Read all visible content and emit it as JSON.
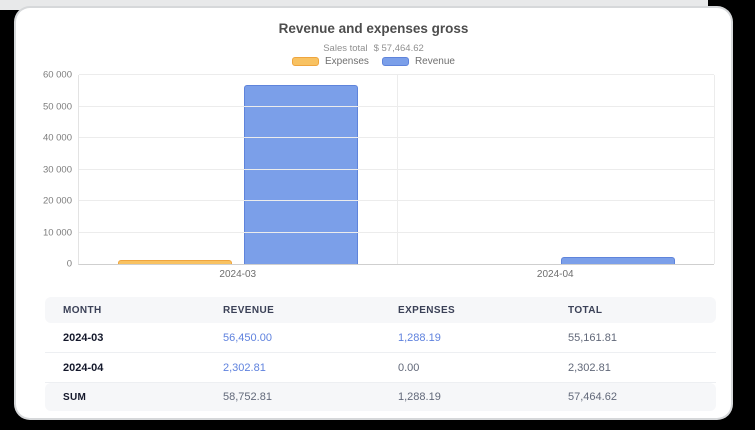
{
  "chart_data": {
    "type": "bar",
    "title": "Revenue and expenses gross",
    "subtitle_label": "Sales total",
    "subtitle_value": "$ 57,464.62",
    "categories": [
      "2024-03",
      "2024-04"
    ],
    "series": [
      {
        "name": "Expenses",
        "values": [
          1288.19,
          0
        ],
        "color": "#F8C262",
        "border_color": "#EFA53E"
      },
      {
        "name": "Revenue",
        "values": [
          56450.0,
          2302.81
        ],
        "color": "#7B9FE9",
        "border_color": "#5F84DB"
      }
    ],
    "ylim": [
      0,
      60000
    ],
    "ytick_labels": [
      "0",
      "10 000",
      "20 000",
      "30 000",
      "40 000",
      "50 000",
      "60 000"
    ],
    "grid": true,
    "legend_position": "top"
  },
  "table": {
    "headers": [
      "MONTH",
      "REVENUE",
      "EXPENSES",
      "TOTAL"
    ],
    "rows": [
      {
        "cells": [
          {
            "text": "2024-03",
            "style": "month"
          },
          {
            "text": "56,450.00",
            "style": "link"
          },
          {
            "text": "1,288.19",
            "style": "link"
          },
          {
            "text": "55,161.81",
            "style": "plain"
          }
        ]
      },
      {
        "cells": [
          {
            "text": "2024-04",
            "style": "month"
          },
          {
            "text": "2,302.81",
            "style": "link"
          },
          {
            "text": "0.00",
            "style": "plain"
          },
          {
            "text": "2,302.81",
            "style": "plain"
          }
        ]
      }
    ],
    "sum_row": {
      "cells": [
        {
          "text": "SUM",
          "style": "sum"
        },
        {
          "text": "58,752.81",
          "style": "plain"
        },
        {
          "text": "1,288.19",
          "style": "plain"
        },
        {
          "text": "57,464.62",
          "style": "plain"
        }
      ]
    }
  }
}
